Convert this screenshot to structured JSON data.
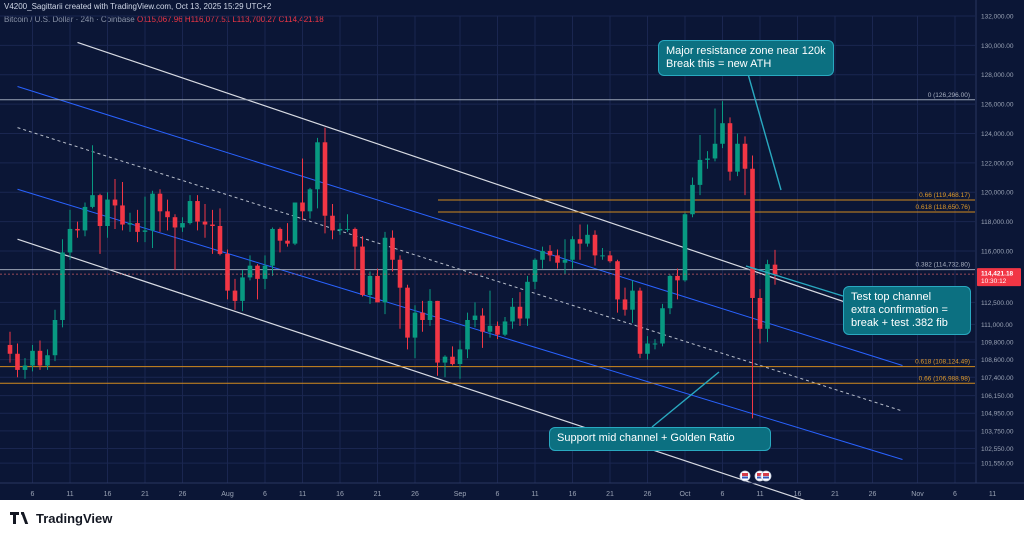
{
  "header": {
    "author_line": "V4200_Sagittarii created with TradingView.com, Oct 13, 2025 15:29 UTC+2"
  },
  "legend": {
    "symbol": "Bitcoin / U.S. Dollar · 24h · Coinbase",
    "open": "O115,067.96",
    "high": "H116,077.51",
    "low": "L113,700.27",
    "close": "C114,421.18"
  },
  "footer": {
    "brand": "TradingView"
  },
  "colors": {
    "background": "#0b1636",
    "bull": "#089981",
    "bear": "#f23645",
    "fib_line": "#d18a1e",
    "channel_white": "#d8dbe3",
    "channel_blue": "#2962ff",
    "callout": "#0c7081",
    "price_tag": "#f23645"
  },
  "chart_data": {
    "type": "candlestick",
    "symbol": "Bitcoin / U.S. Dollar",
    "interval": "24h",
    "exchange": "Coinbase",
    "ylim": [
      100200,
      132000
    ],
    "y_ticks": [
      "132,000.00",
      "130,000.00",
      "128,000.00",
      "126,000.00",
      "124,000.00",
      "122,000.00",
      "120,000.00",
      "118,000.00",
      "116,000.00",
      "112,500.00",
      "111,000.00",
      "109,800.00",
      "108,600.00",
      "107,400.00",
      "106,150.00",
      "104,950.00",
      "103,750.00",
      "102,550.00",
      "101,550.00"
    ],
    "y_tick_values": [
      132000,
      130000,
      128000,
      126000,
      124000,
      122000,
      120000,
      118000,
      116000,
      112500,
      111000,
      109800,
      108600,
      107400,
      106150,
      104950,
      103750,
      102550,
      101550
    ],
    "x_ticks": [
      "6",
      "11",
      "16",
      "21",
      "26",
      "Aug",
      "6",
      "11",
      "16",
      "21",
      "26",
      "Sep",
      "6",
      "11",
      "16",
      "21",
      "26",
      "Oct",
      "6",
      "11",
      "16",
      "21",
      "26",
      "Nov",
      "6",
      "11"
    ],
    "x_tick_dates": [
      "2025-07-06",
      "2025-07-11",
      "2025-07-16",
      "2025-07-21",
      "2025-07-26",
      "2025-08-01",
      "2025-08-06",
      "2025-08-11",
      "2025-08-16",
      "2025-08-21",
      "2025-08-26",
      "2025-09-01",
      "2025-09-06",
      "2025-09-11",
      "2025-09-16",
      "2025-09-21",
      "2025-09-26",
      "2025-10-01",
      "2025-10-06",
      "2025-10-11",
      "2025-10-16",
      "2025-10-21",
      "2025-10-26",
      "2025-11-01",
      "2025-11-06",
      "2025-11-11"
    ],
    "last_price": "114,421.18",
    "countdown": "10:30:12",
    "candles": [
      {
        "date": "2025-07-03",
        "o": 109600,
        "h": 110500,
        "l": 108400,
        "c": 109000
      },
      {
        "date": "2025-07-04",
        "o": 109000,
        "h": 109700,
        "l": 107400,
        "c": 107900
      },
      {
        "date": "2025-07-05",
        "o": 107900,
        "h": 108700,
        "l": 107300,
        "c": 108200
      },
      {
        "date": "2025-07-06",
        "o": 108200,
        "h": 109600,
        "l": 107800,
        "c": 109200
      },
      {
        "date": "2025-07-07",
        "o": 109200,
        "h": 109900,
        "l": 107900,
        "c": 108200
      },
      {
        "date": "2025-07-08",
        "o": 108200,
        "h": 109300,
        "l": 107900,
        "c": 108900
      },
      {
        "date": "2025-07-09",
        "o": 108900,
        "h": 112000,
        "l": 108500,
        "c": 111300
      },
      {
        "date": "2025-07-10",
        "o": 111300,
        "h": 116800,
        "l": 110800,
        "c": 115900
      },
      {
        "date": "2025-07-11",
        "o": 115900,
        "h": 118800,
        "l": 115400,
        "c": 117500
      },
      {
        "date": "2025-07-12",
        "o": 117500,
        "h": 118000,
        "l": 116900,
        "c": 117400
      },
      {
        "date": "2025-07-13",
        "o": 117400,
        "h": 119300,
        "l": 117000,
        "c": 119000
      },
      {
        "date": "2025-07-14",
        "o": 119000,
        "h": 123200,
        "l": 118900,
        "c": 119800
      },
      {
        "date": "2025-07-15",
        "o": 119800,
        "h": 119900,
        "l": 115800,
        "c": 117700
      },
      {
        "date": "2025-07-16",
        "o": 117700,
        "h": 120000,
        "l": 116900,
        "c": 119500
      },
      {
        "date": "2025-07-17",
        "o": 119500,
        "h": 120900,
        "l": 117500,
        "c": 119100
      },
      {
        "date": "2025-07-18",
        "o": 119100,
        "h": 120700,
        "l": 117400,
        "c": 117800
      },
      {
        "date": "2025-07-19",
        "o": 117800,
        "h": 118600,
        "l": 117300,
        "c": 117900
      },
      {
        "date": "2025-07-20",
        "o": 117900,
        "h": 118800,
        "l": 116600,
        "c": 117300
      },
      {
        "date": "2025-07-21",
        "o": 117300,
        "h": 119700,
        "l": 116600,
        "c": 117400
      },
      {
        "date": "2025-07-22",
        "o": 117400,
        "h": 120100,
        "l": 116200,
        "c": 119900
      },
      {
        "date": "2025-07-23",
        "o": 119900,
        "h": 120200,
        "l": 117300,
        "c": 118700
      },
      {
        "date": "2025-07-24",
        "o": 118700,
        "h": 119500,
        "l": 117400,
        "c": 118300
      },
      {
        "date": "2025-07-25",
        "o": 118300,
        "h": 118500,
        "l": 114700,
        "c": 117600
      },
      {
        "date": "2025-07-26",
        "o": 117600,
        "h": 118300,
        "l": 117300,
        "c": 117900
      },
      {
        "date": "2025-07-27",
        "o": 117900,
        "h": 119800,
        "l": 117800,
        "c": 119400
      },
      {
        "date": "2025-07-28",
        "o": 119400,
        "h": 119800,
        "l": 117400,
        "c": 118000
      },
      {
        "date": "2025-07-29",
        "o": 118000,
        "h": 119200,
        "l": 116900,
        "c": 117800
      },
      {
        "date": "2025-07-30",
        "o": 117800,
        "h": 118800,
        "l": 115800,
        "c": 117700
      },
      {
        "date": "2025-07-31",
        "o": 117700,
        "h": 118900,
        "l": 115700,
        "c": 115800
      },
      {
        "date": "2025-08-01",
        "o": 115800,
        "h": 116100,
        "l": 112700,
        "c": 113300
      },
      {
        "date": "2025-08-02",
        "o": 113300,
        "h": 114100,
        "l": 112000,
        "c": 112600
      },
      {
        "date": "2025-08-03",
        "o": 112600,
        "h": 114700,
        "l": 111900,
        "c": 114200
      },
      {
        "date": "2025-08-04",
        "o": 114200,
        "h": 115700,
        "l": 114000,
        "c": 115000
      },
      {
        "date": "2025-08-05",
        "o": 115000,
        "h": 115100,
        "l": 112700,
        "c": 114100
      },
      {
        "date": "2025-08-06",
        "o": 114100,
        "h": 115700,
        "l": 113400,
        "c": 115000
      },
      {
        "date": "2025-08-07",
        "o": 115000,
        "h": 117600,
        "l": 114300,
        "c": 117500
      },
      {
        "date": "2025-08-08",
        "o": 117500,
        "h": 117600,
        "l": 115900,
        "c": 116700
      },
      {
        "date": "2025-08-09",
        "o": 116700,
        "h": 117900,
        "l": 116300,
        "c": 116500
      },
      {
        "date": "2025-08-10",
        "o": 116500,
        "h": 119300,
        "l": 116400,
        "c": 119300
      },
      {
        "date": "2025-08-11",
        "o": 119300,
        "h": 122300,
        "l": 118100,
        "c": 118700
      },
      {
        "date": "2025-08-12",
        "o": 118700,
        "h": 120300,
        "l": 118200,
        "c": 120200
      },
      {
        "date": "2025-08-13",
        "o": 120200,
        "h": 123700,
        "l": 118900,
        "c": 123400
      },
      {
        "date": "2025-08-14",
        "o": 123400,
        "h": 124400,
        "l": 117200,
        "c": 118400
      },
      {
        "date": "2025-08-15",
        "o": 118400,
        "h": 119200,
        "l": 116800,
        "c": 117400
      },
      {
        "date": "2025-08-16",
        "o": 117400,
        "h": 117900,
        "l": 117100,
        "c": 117500
      },
      {
        "date": "2025-08-17",
        "o": 117500,
        "h": 118500,
        "l": 117300,
        "c": 117500
      },
      {
        "date": "2025-08-18",
        "o": 117500,
        "h": 117600,
        "l": 114700,
        "c": 116300
      },
      {
        "date": "2025-08-19",
        "o": 116300,
        "h": 117000,
        "l": 112900,
        "c": 113000
      },
      {
        "date": "2025-08-20",
        "o": 113000,
        "h": 114600,
        "l": 112400,
        "c": 114300
      },
      {
        "date": "2025-08-21",
        "o": 114300,
        "h": 114800,
        "l": 112500,
        "c": 112500
      },
      {
        "date": "2025-08-22",
        "o": 112500,
        "h": 117300,
        "l": 111700,
        "c": 116900
      },
      {
        "date": "2025-08-23",
        "o": 116900,
        "h": 117400,
        "l": 114600,
        "c": 115400
      },
      {
        "date": "2025-08-24",
        "o": 115400,
        "h": 115700,
        "l": 110700,
        "c": 113500
      },
      {
        "date": "2025-08-25",
        "o": 113500,
        "h": 113700,
        "l": 109300,
        "c": 110100
      },
      {
        "date": "2025-08-26",
        "o": 110100,
        "h": 112300,
        "l": 108700,
        "c": 111800
      },
      {
        "date": "2025-08-27",
        "o": 111800,
        "h": 112600,
        "l": 110500,
        "c": 111300
      },
      {
        "date": "2025-08-28",
        "o": 111300,
        "h": 113400,
        "l": 110900,
        "c": 112600
      },
      {
        "date": "2025-08-29",
        "o": 112600,
        "h": 112600,
        "l": 107500,
        "c": 108400
      },
      {
        "date": "2025-08-30",
        "o": 108400,
        "h": 108900,
        "l": 107400,
        "c": 108800
      },
      {
        "date": "2025-08-31",
        "o": 108800,
        "h": 109500,
        "l": 108200,
        "c": 108300
      },
      {
        "date": "2025-09-01",
        "o": 108300,
        "h": 109900,
        "l": 107300,
        "c": 109300
      },
      {
        "date": "2025-09-02",
        "o": 109300,
        "h": 111800,
        "l": 108700,
        "c": 111300
      },
      {
        "date": "2025-09-03",
        "o": 111300,
        "h": 112500,
        "l": 110800,
        "c": 111600
      },
      {
        "date": "2025-09-04",
        "o": 111600,
        "h": 112100,
        "l": 109400,
        "c": 110500
      },
      {
        "date": "2025-09-05",
        "o": 110500,
        "h": 113300,
        "l": 110100,
        "c": 110900
      },
      {
        "date": "2025-09-06",
        "o": 110900,
        "h": 111200,
        "l": 110000,
        "c": 110300
      },
      {
        "date": "2025-09-07",
        "o": 110300,
        "h": 111500,
        "l": 110200,
        "c": 111200
      },
      {
        "date": "2025-09-08",
        "o": 111200,
        "h": 112800,
        "l": 110700,
        "c": 112200
      },
      {
        "date": "2025-09-09",
        "o": 112200,
        "h": 113200,
        "l": 110900,
        "c": 111400
      },
      {
        "date": "2025-09-10",
        "o": 111400,
        "h": 114300,
        "l": 110900,
        "c": 113900
      },
      {
        "date": "2025-09-11",
        "o": 113900,
        "h": 115500,
        "l": 113400,
        "c": 115400
      },
      {
        "date": "2025-09-12",
        "o": 115400,
        "h": 116300,
        "l": 114800,
        "c": 116000
      },
      {
        "date": "2025-09-13",
        "o": 116000,
        "h": 116400,
        "l": 115300,
        "c": 115700
      },
      {
        "date": "2025-09-14",
        "o": 115700,
        "h": 116100,
        "l": 114800,
        "c": 115200
      },
      {
        "date": "2025-09-15",
        "o": 115200,
        "h": 116800,
        "l": 114400,
        "c": 115400
      },
      {
        "date": "2025-09-16",
        "o": 115400,
        "h": 117000,
        "l": 114800,
        "c": 116800
      },
      {
        "date": "2025-09-17",
        "o": 116800,
        "h": 117800,
        "l": 115400,
        "c": 116500
      },
      {
        "date": "2025-09-18",
        "o": 116500,
        "h": 117800,
        "l": 116300,
        "c": 117100
      },
      {
        "date": "2025-09-19",
        "o": 117100,
        "h": 117400,
        "l": 115000,
        "c": 115700
      },
      {
        "date": "2025-09-20",
        "o": 115700,
        "h": 116200,
        "l": 115400,
        "c": 115700
      },
      {
        "date": "2025-09-21",
        "o": 115700,
        "h": 116000,
        "l": 115200,
        "c": 115300
      },
      {
        "date": "2025-09-22",
        "o": 115300,
        "h": 115400,
        "l": 111800,
        "c": 112700
      },
      {
        "date": "2025-09-23",
        "o": 112700,
        "h": 113500,
        "l": 111600,
        "c": 112000
      },
      {
        "date": "2025-09-24",
        "o": 112000,
        "h": 114000,
        "l": 111100,
        "c": 113300
      },
      {
        "date": "2025-09-25",
        "o": 113300,
        "h": 113500,
        "l": 108700,
        "c": 109000
      },
      {
        "date": "2025-09-26",
        "o": 109000,
        "h": 110200,
        "l": 108600,
        "c": 109700
      },
      {
        "date": "2025-09-27",
        "o": 109700,
        "h": 110000,
        "l": 109300,
        "c": 109700
      },
      {
        "date": "2025-09-28",
        "o": 109700,
        "h": 112400,
        "l": 109500,
        "c": 112100
      },
      {
        "date": "2025-09-29",
        "o": 112100,
        "h": 114400,
        "l": 111700,
        "c": 114300
      },
      {
        "date": "2025-09-30",
        "o": 114300,
        "h": 114800,
        "l": 112700,
        "c": 114000
      },
      {
        "date": "2025-10-01",
        "o": 114000,
        "h": 118600,
        "l": 113900,
        "c": 118500
      },
      {
        "date": "2025-10-02",
        "o": 118500,
        "h": 121000,
        "l": 118300,
        "c": 120500
      },
      {
        "date": "2025-10-03",
        "o": 120500,
        "h": 123900,
        "l": 119800,
        "c": 122200
      },
      {
        "date": "2025-10-04",
        "o": 122200,
        "h": 122800,
        "l": 121600,
        "c": 122300
      },
      {
        "date": "2025-10-05",
        "o": 122300,
        "h": 125700,
        "l": 122100,
        "c": 123300
      },
      {
        "date": "2025-10-06",
        "o": 123300,
        "h": 126200,
        "l": 123000,
        "c": 124700
      },
      {
        "date": "2025-10-07",
        "o": 124700,
        "h": 125100,
        "l": 120800,
        "c": 121400
      },
      {
        "date": "2025-10-08",
        "o": 121400,
        "h": 124000,
        "l": 121100,
        "c": 123300
      },
      {
        "date": "2025-10-09",
        "o": 123300,
        "h": 123800,
        "l": 119800,
        "c": 121600
      },
      {
        "date": "2025-10-10",
        "o": 121600,
        "h": 122500,
        "l": 104600,
        "c": 112800
      },
      {
        "date": "2025-10-11",
        "o": 112800,
        "h": 113400,
        "l": 109700,
        "c": 110700
      },
      {
        "date": "2025-10-12",
        "o": 110700,
        "h": 115400,
        "l": 109800,
        "c": 115100
      },
      {
        "date": "2025-10-13",
        "o": 115068,
        "h": 116078,
        "l": 113700,
        "c": 114421
      }
    ],
    "fib_levels": [
      {
        "ratio": "0",
        "value": 126296.0,
        "label": "0 (126,296.00)"
      },
      {
        "ratio": "0.66",
        "value": 119468.17,
        "label": "0.66 (119,468.17)"
      },
      {
        "ratio": "0.618",
        "value": 118650.76,
        "label": "0.618 (118,650.76)"
      },
      {
        "ratio": "0.382",
        "value": 114732.8,
        "label": "0.382 (114,732.80)"
      },
      {
        "ratio": "0.618",
        "value": 108124.49,
        "label": "0.618 (108,124.49)"
      },
      {
        "ratio": "0.66",
        "value": 106988.98,
        "label": "0.66 (106,988.98)"
      }
    ],
    "annotations": [
      {
        "text": "Major resistance zone near 120k\nBreak this = new ATH"
      },
      {
        "text": "Test top channel\nextra confirmation =\nbreak + test .382 fib"
      },
      {
        "text": "Support mid channel + Golden Ratio"
      }
    ]
  }
}
